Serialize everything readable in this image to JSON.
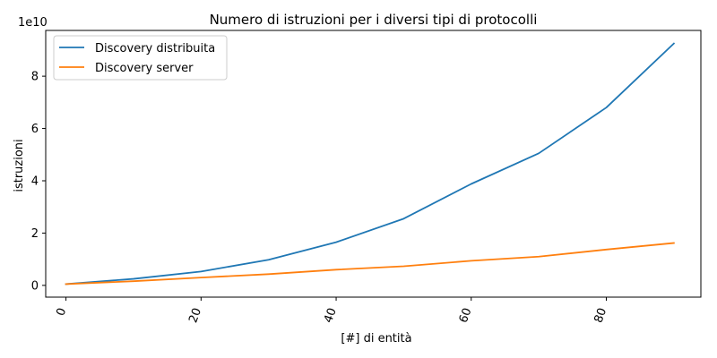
{
  "chart_data": {
    "type": "line",
    "title": "Numero di istruzioni per i diversi tipi di protocolli",
    "xlabel": "[#] di entità",
    "ylabel": "istruzioni",
    "y_multiplier": "1e10",
    "x": [
      0,
      10,
      20,
      30,
      40,
      50,
      60,
      70,
      80,
      90
    ],
    "xlim": [
      -3,
      94
    ],
    "ylim": [
      -0.45,
      9.75
    ],
    "xticks": [
      0,
      20,
      40,
      60,
      80
    ],
    "yticks": [
      0,
      2,
      4,
      6,
      8
    ],
    "x_tick_rotation": -70,
    "grid": false,
    "legend_position": "top-left",
    "series": [
      {
        "name": "Discovery distribuita",
        "color": "#1f77b4",
        "values": [
          0.05,
          0.25,
          0.53,
          0.98,
          1.65,
          2.55,
          3.88,
          5.05,
          6.8,
          9.25
        ]
      },
      {
        "name": "Discovery server",
        "color": "#ff7f0e",
        "values": [
          0.05,
          0.16,
          0.3,
          0.43,
          0.6,
          0.73,
          0.94,
          1.1,
          1.37,
          1.62
        ]
      }
    ]
  }
}
